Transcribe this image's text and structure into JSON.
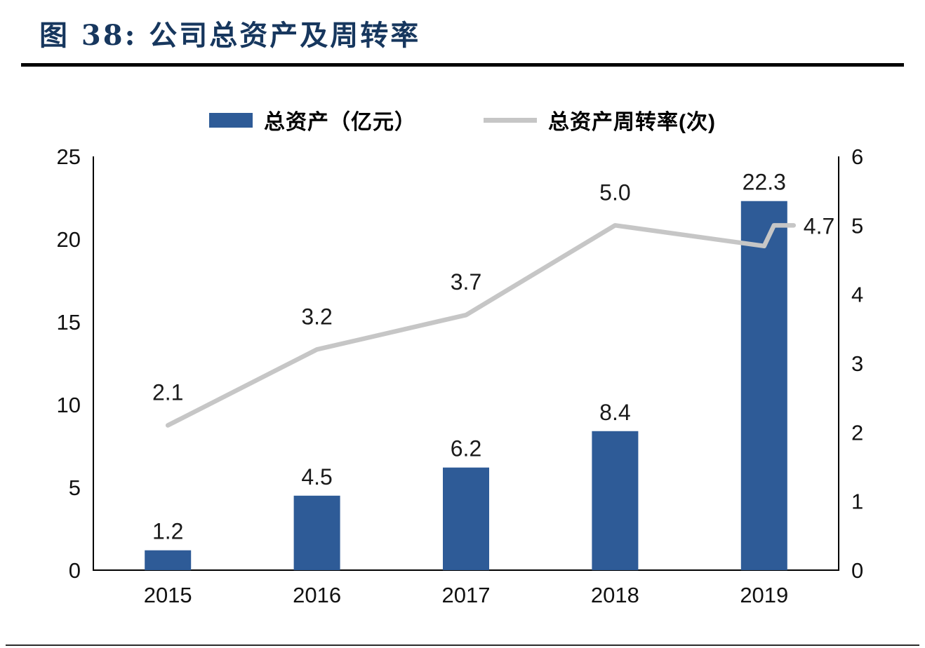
{
  "header": {
    "title": "图 38:  公司总资产及周转率"
  },
  "chart_data": {
    "type": "combo",
    "categories": [
      "2015",
      "2016",
      "2017",
      "2018",
      "2019"
    ],
    "series": [
      {
        "name": "总资产（亿元）",
        "type": "bar",
        "axis": "left",
        "color": "#2e5b97",
        "values": [
          1.2,
          4.5,
          6.2,
          8.4,
          22.3
        ]
      },
      {
        "name": "总资产周转率(次)",
        "type": "line",
        "axis": "right",
        "color": "#c6c6c6",
        "values": [
          2.1,
          3.2,
          3.7,
          5.0,
          4.7
        ]
      }
    ],
    "bar_labels": [
      "1.2",
      "4.5",
      "6.2",
      "8.4",
      "22.3"
    ],
    "line_labels": [
      "2.1",
      "3.2",
      "3.7",
      "5.0",
      "4.7"
    ],
    "left_axis": {
      "min": 0,
      "max": 25,
      "step": 5,
      "ticks": [
        "0",
        "5",
        "10",
        "15",
        "20",
        "25"
      ]
    },
    "right_axis": {
      "min": 0,
      "max": 6,
      "step": 1,
      "ticks": [
        "0",
        "1",
        "2",
        "3",
        "4",
        "5",
        "6"
      ]
    },
    "legend_position": "top",
    "grid": false,
    "line_end_uptick": 5.0
  }
}
